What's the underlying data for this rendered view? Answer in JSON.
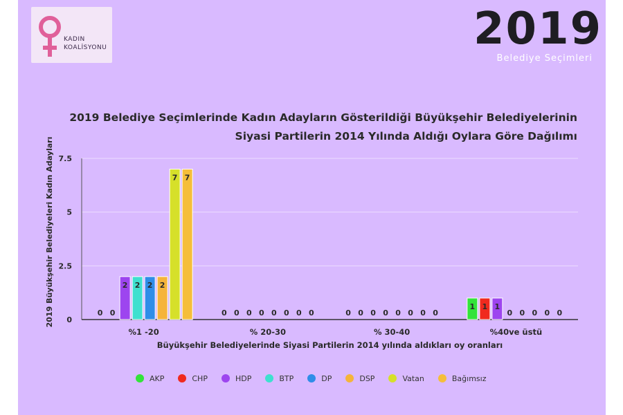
{
  "header": {
    "logo_text_line1": "KADIN",
    "logo_text_line2": "KOALİSYONU",
    "year": "2019",
    "banner_subtitle": "Belediye Seçimleri"
  },
  "colors": {
    "background": "#d9baff",
    "logo_symbol": "#e0609a"
  },
  "chart_data": {
    "type": "bar",
    "title": "2019 Belediye Seçimlerinde Kadın Adayların Gösterildiği Büyükşehir Belediyelerinin Siyasi Partilerin 2014 Yılında Aldığı Oylara Göre Dağılımı",
    "title_line1": "2019 Belediye Seçimlerinde Kadın Adayların Gösterildiği Büyükşehir Belediyelerinin",
    "title_line2": "Siyasi Partilerin 2014 Yılında Aldığı Oylara Göre Dağılımı",
    "xlabel": "Büyükşehir Belediyelerinde Siyasi Partilerin 2014 yılında aldıkları oy oranları",
    "ylabel": "2019 Büyükşehir Belediyeleri Kadın Adayları",
    "categories": [
      "%1 -20",
      "% 20-30",
      "% 30-40",
      "%40ve üstü"
    ],
    "ylim": [
      0,
      7.5
    ],
    "yticks": [
      "0",
      "2.5",
      "5",
      "7.5"
    ],
    "ytick_values": [
      0,
      2.5,
      5,
      7.5
    ],
    "grid": true,
    "legend_position": "bottom",
    "series": [
      {
        "name": "AKP",
        "color": "#33e33a",
        "values": [
          0,
          0,
          0,
          1
        ]
      },
      {
        "name": "CHP",
        "color": "#f02a1e",
        "values": [
          0,
          0,
          0,
          1
        ]
      },
      {
        "name": "HDP",
        "color": "#9d45ef",
        "values": [
          2,
          0,
          0,
          1
        ]
      },
      {
        "name": "BTP",
        "color": "#3ee0cf",
        "values": [
          2,
          0,
          0,
          0
        ]
      },
      {
        "name": "DP",
        "color": "#2f8de8",
        "values": [
          2,
          0,
          0,
          0
        ]
      },
      {
        "name": "DSP",
        "color": "#f5b43a",
        "values": [
          2,
          0,
          0,
          0
        ]
      },
      {
        "name": "Vatan",
        "color": "#d6e02a",
        "values": [
          7,
          0,
          0,
          0
        ]
      },
      {
        "name": "Bağımsız",
        "color": "#f5be3a",
        "values": [
          7,
          0,
          0,
          0
        ]
      }
    ]
  }
}
